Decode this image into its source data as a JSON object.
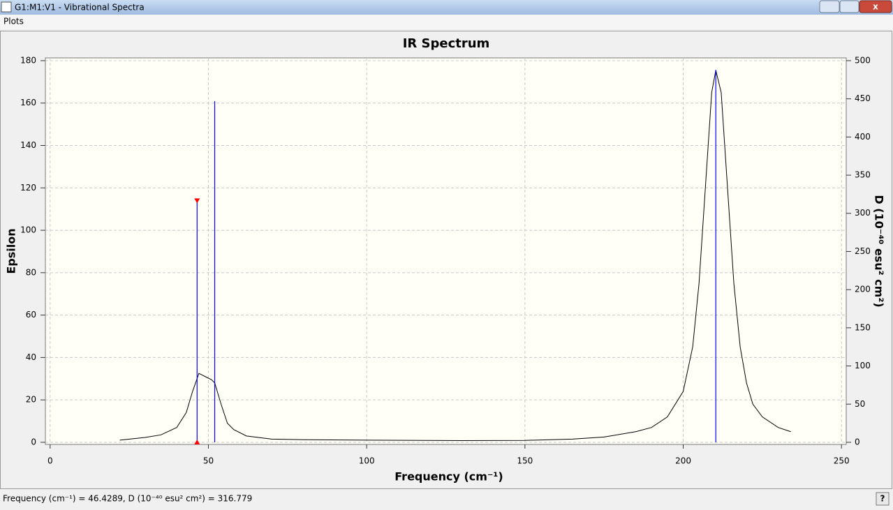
{
  "window": {
    "title": "G1:M1:V1 - Vibrational Spectra",
    "menu": [
      "Plots"
    ],
    "status": "Frequency (cm⁻¹) = 46.4289, D (10⁻⁴⁰ esu² cm²) = 316.779"
  },
  "chart_data": {
    "type": "spectrum",
    "title": "IR Spectrum",
    "x_label": "Frequency (cm⁻¹)",
    "y_label": "Epsilon",
    "y2_label": "D (10⁻⁴⁰ esu² cm²)",
    "xlim": [
      -1.5,
      251.5
    ],
    "xticks": [
      0,
      50,
      100,
      150,
      200,
      250
    ],
    "ylim": [
      -1,
      181.3
    ],
    "yticks": [
      0,
      20,
      40,
      60,
      80,
      100,
      120,
      140,
      160,
      180
    ],
    "y2lim": [
      -2.78,
      503.6
    ],
    "y2ticks": [
      0,
      50,
      100,
      150,
      200,
      250,
      300,
      350,
      400,
      450,
      500
    ],
    "grid": true,
    "curve": {
      "color": "#000000",
      "x": [
        22,
        30,
        35,
        40,
        43,
        45,
        47,
        49,
        51,
        52,
        54,
        56,
        58,
        62,
        70,
        80,
        100,
        130,
        150,
        165,
        175,
        185,
        190,
        195,
        200,
        203,
        205,
        207,
        209,
        210.3,
        212,
        214,
        216,
        218,
        220,
        222,
        225,
        230,
        234
      ],
      "values": [
        1.0,
        2.3,
        3.5,
        7,
        14,
        24,
        32.5,
        31,
        29.5,
        28,
        18,
        9,
        6,
        3,
        1.5,
        1.2,
        1.0,
        0.8,
        0.9,
        1.5,
        2.5,
        5,
        7,
        12,
        24,
        45,
        75,
        120,
        165,
        175.5,
        165,
        120,
        75,
        45,
        28,
        18,
        12,
        7,
        5
      ]
    },
    "sticks": {
      "color": "#0000ff",
      "axis": "y2",
      "x": [
        46.4289,
        52.0,
        210.3
      ],
      "values": [
        316.779,
        447,
        488
      ],
      "selected": 0,
      "selected_color": "#ff0000"
    }
  }
}
